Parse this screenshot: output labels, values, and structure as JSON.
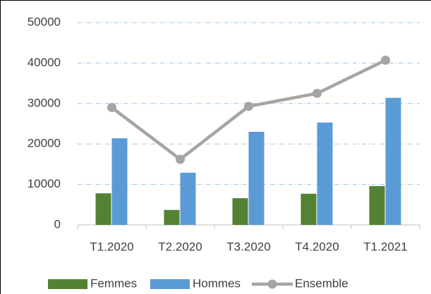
{
  "chart_data": {
    "type": "bar",
    "categories": [
      "T1.2020",
      "T2.2020",
      "T3.2020",
      "T4.2020",
      "T1.2021"
    ],
    "series": [
      {
        "name": "Femmes",
        "color": "#548235",
        "type": "bar",
        "values": [
          7800,
          3700,
          6600,
          7700,
          9600
        ]
      },
      {
        "name": "Hommes",
        "color": "#5b9bd5",
        "type": "bar",
        "values": [
          21400,
          12900,
          23000,
          25300,
          31400
        ]
      },
      {
        "name": "Ensemble",
        "color": "#a5a5a5",
        "type": "line",
        "values": [
          29000,
          16200,
          29300,
          32500,
          40700
        ]
      }
    ],
    "ylim": [
      0,
      50000
    ],
    "yticks": [
      0,
      10000,
      20000,
      30000,
      40000,
      50000
    ],
    "grid": true,
    "legend": "bottom"
  }
}
